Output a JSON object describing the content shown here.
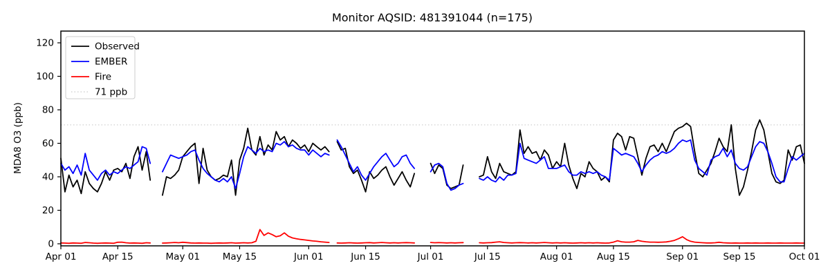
{
  "title": "Monitor AQSID: 481391044 (n=175)",
  "ylabel": "MDA8 O3 (ppb)",
  "chart_data": {
    "type": "line",
    "x_axis": "date",
    "x_start_label": "Apr 01",
    "x_end_label": "Oct 01",
    "x_days": 183,
    "x_ticks": [
      {
        "label": "Apr 01",
        "day": 0
      },
      {
        "label": "Apr 15",
        "day": 14
      },
      {
        "label": "May 01",
        "day": 30
      },
      {
        "label": "May 15",
        "day": 44
      },
      {
        "label": "Jun 01",
        "day": 61
      },
      {
        "label": "Jun 15",
        "day": 75
      },
      {
        "label": "Jul 01",
        "day": 91
      },
      {
        "label": "Jul 15",
        "day": 105
      },
      {
        "label": "Aug 01",
        "day": 122
      },
      {
        "label": "Aug 15",
        "day": 136
      },
      {
        "label": "Sep 01",
        "day": 153
      },
      {
        "label": "Sep 15",
        "day": 167
      },
      {
        "label": "Oct 01",
        "day": 183
      }
    ],
    "y_ticks": [
      0,
      20,
      40,
      60,
      80,
      100,
      120
    ],
    "ylim": [
      -1,
      127
    ],
    "grid": false,
    "legend_position": "upper left",
    "threshold": {
      "label": "71 ppb",
      "value": 71,
      "color": "#d3d3d3",
      "style": "dotted"
    },
    "series": [
      {
        "name": "Observed",
        "color": "#000000",
        "values": [
          51,
          31,
          41,
          34,
          38,
          30,
          43,
          36,
          33,
          31,
          36,
          43,
          38,
          44,
          45,
          43,
          48,
          39,
          52,
          58,
          44,
          55,
          38,
          null,
          null,
          29,
          40,
          39,
          41,
          44,
          52,
          55,
          58,
          60,
          36,
          57,
          44,
          40,
          38,
          39,
          41,
          40,
          50,
          29,
          50,
          57,
          69,
          56,
          53,
          64,
          53,
          59,
          56,
          67,
          62,
          64,
          58,
          62,
          60,
          57,
          59,
          55,
          60,
          58,
          56,
          58,
          55,
          null,
          61,
          56,
          57,
          46,
          42,
          44,
          38,
          31,
          43,
          39,
          41,
          44,
          46,
          40,
          35,
          39,
          43,
          38,
          34,
          42,
          null,
          null,
          null,
          48,
          42,
          47,
          45,
          35,
          33,
          34,
          35,
          47,
          null,
          null,
          null,
          40,
          41,
          52,
          43,
          39,
          48,
          43,
          42,
          41,
          43,
          68,
          54,
          58,
          54,
          55,
          50,
          56,
          53,
          45,
          49,
          46,
          60,
          47,
          39,
          33,
          42,
          40,
          49,
          45,
          43,
          38,
          40,
          37,
          62,
          66,
          64,
          56,
          64,
          63,
          52,
          41,
          51,
          58,
          59,
          55,
          60,
          55,
          61,
          67,
          69,
          70,
          72,
          70,
          55,
          42,
          40,
          44,
          48,
          55,
          63,
          58,
          55,
          71,
          45,
          29,
          34,
          44,
          55,
          68,
          74,
          68,
          55,
          42,
          37,
          36,
          38,
          56,
          50,
          58,
          59,
          48
        ]
      },
      {
        "name": "EMBER",
        "color": "#0000ff",
        "values": [
          48,
          44,
          46,
          42,
          47,
          41,
          54,
          44,
          41,
          38,
          42,
          44,
          41,
          43,
          42,
          44,
          46,
          45,
          47,
          49,
          58,
          57,
          48,
          null,
          null,
          43,
          48,
          53,
          52,
          51,
          52,
          53,
          55,
          56,
          50,
          45,
          42,
          40,
          38,
          37,
          39,
          37,
          40,
          33,
          42,
          52,
          58,
          56,
          54,
          57,
          55,
          56,
          55,
          60,
          59,
          61,
          58,
          59,
          57,
          56,
          56,
          53,
          56,
          54,
          52,
          54,
          53,
          null,
          62,
          58,
          53,
          48,
          43,
          46,
          41,
          38,
          42,
          46,
          49,
          52,
          54,
          50,
          46,
          48,
          52,
          53,
          48,
          45,
          null,
          null,
          null,
          43,
          47,
          48,
          46,
          36,
          32,
          33,
          35,
          36,
          null,
          null,
          null,
          39,
          38,
          40,
          38,
          37,
          40,
          38,
          41,
          41,
          42,
          60,
          51,
          50,
          49,
          48,
          50,
          52,
          45,
          45,
          45,
          46,
          47,
          43,
          41,
          41,
          43,
          42,
          43,
          42,
          43,
          41,
          40,
          38,
          57,
          55,
          53,
          54,
          53,
          52,
          48,
          43,
          47,
          50,
          52,
          53,
          55,
          54,
          55,
          57,
          60,
          62,
          61,
          62,
          50,
          45,
          43,
          41,
          50,
          52,
          53,
          57,
          52,
          56,
          48,
          45,
          44,
          46,
          52,
          58,
          61,
          60,
          55,
          48,
          40,
          37,
          37,
          45,
          52,
          50,
          52,
          54
        ]
      },
      {
        "name": "Fire",
        "color": "#ff0000",
        "values": [
          0.5,
          0.4,
          0.3,
          0.5,
          0.4,
          0.3,
          0.8,
          0.6,
          0.4,
          0.3,
          0.4,
          0.5,
          0.4,
          0.3,
          0.9,
          1.0,
          0.6,
          0.4,
          0.5,
          0.4,
          0.3,
          0.6,
          0.5,
          null,
          null,
          0.4,
          0.5,
          0.6,
          0.8,
          0.6,
          0.9,
          0.7,
          0.5,
          0.4,
          0.5,
          0.4,
          0.4,
          0.3,
          0.4,
          0.5,
          0.4,
          0.5,
          0.6,
          0.4,
          0.5,
          0.6,
          0.5,
          0.6,
          1.5,
          8.5,
          5.0,
          6.5,
          5.5,
          4.2,
          4.8,
          6.5,
          4.5,
          3.5,
          3.0,
          2.6,
          2.3,
          2.0,
          1.7,
          1.5,
          1.2,
          1.0,
          0.8,
          null,
          0.5,
          0.4,
          0.5,
          0.6,
          0.5,
          0.4,
          0.5,
          0.6,
          0.7,
          0.5,
          0.6,
          0.8,
          0.6,
          0.5,
          0.6,
          0.5,
          0.6,
          0.7,
          0.6,
          0.5,
          null,
          null,
          null,
          0.8,
          0.6,
          0.7,
          0.6,
          0.5,
          0.6,
          0.5,
          0.6,
          0.7,
          null,
          null,
          null,
          0.6,
          0.5,
          0.6,
          0.7,
          1.0,
          1.2,
          0.8,
          0.6,
          0.5,
          0.6,
          0.7,
          0.6,
          0.5,
          0.6,
          0.5,
          0.6,
          0.8,
          0.6,
          0.5,
          0.6,
          0.5,
          0.6,
          0.5,
          0.4,
          0.5,
          0.6,
          0.5,
          0.6,
          0.5,
          0.6,
          0.5,
          0.4,
          0.5,
          1.0,
          1.8,
          1.2,
          1.0,
          1.0,
          1.2,
          2.0,
          1.5,
          1.2,
          1.0,
          1.0,
          0.9,
          1.0,
          1.1,
          1.5,
          2.0,
          3.0,
          4.2,
          2.5,
          1.5,
          1.0,
          0.8,
          0.6,
          0.5,
          0.5,
          0.6,
          0.9,
          0.6,
          0.5,
          0.4,
          0.5,
          0.4,
          0.4,
          0.5,
          0.4,
          0.5,
          0.4,
          0.4,
          0.5,
          0.4,
          0.4,
          0.5,
          0.4,
          0.4,
          0.4,
          0.5,
          0.4,
          0.4
        ]
      }
    ]
  }
}
